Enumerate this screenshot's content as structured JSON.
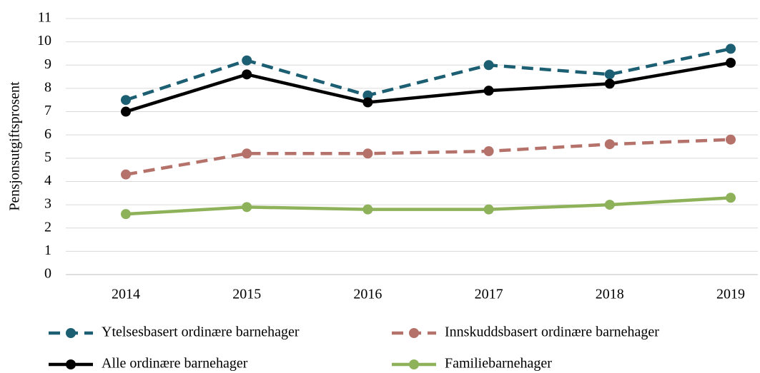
{
  "chart_data": {
    "type": "line",
    "y_label": "Pensjonsutgiftsprosent",
    "categories": [
      "2014",
      "2015",
      "2016",
      "2017",
      "2018",
      "2019"
    ],
    "series": [
      {
        "name": "Ytelsesbasert ordinære barnehager",
        "color": "#1c5f73",
        "dash": true,
        "values": [
          7.5,
          9.2,
          7.7,
          9.0,
          8.6,
          9.7
        ]
      },
      {
        "name": "Innskuddsbasert ordinære barnehager",
        "color": "#b4726a",
        "dash": true,
        "values": [
          4.3,
          5.2,
          5.2,
          5.3,
          5.6,
          5.8
        ]
      },
      {
        "name": "Alle ordinære barnehager",
        "color": "#000000",
        "dash": false,
        "values": [
          7.0,
          8.6,
          7.4,
          7.9,
          8.2,
          9.1
        ]
      },
      {
        "name": "Familiebarnehager",
        "color": "#8db25a",
        "dash": false,
        "values": [
          2.6,
          2.9,
          2.8,
          2.8,
          3.0,
          3.3
        ]
      }
    ],
    "ylim": [
      0,
      11
    ],
    "yticks": [
      0,
      1,
      2,
      3,
      4,
      5,
      6,
      7,
      8,
      9,
      10,
      11
    ],
    "grid": true
  }
}
